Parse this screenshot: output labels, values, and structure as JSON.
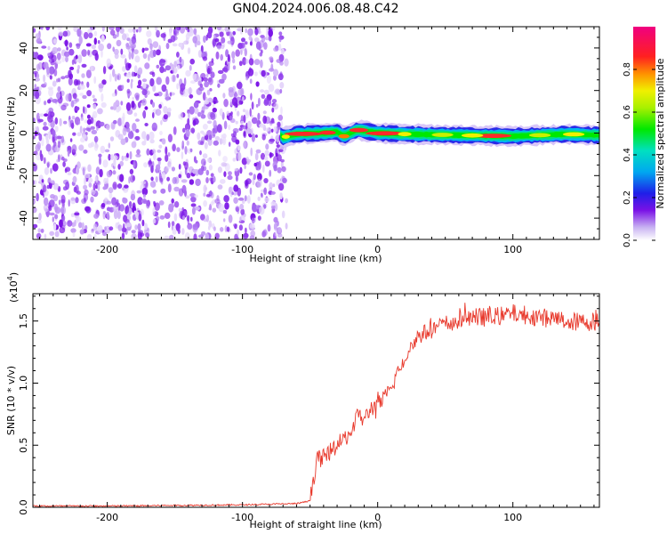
{
  "title": "GN04.2024.006.08.48.C42",
  "chart_data": [
    {
      "type": "heatmap",
      "xlabel": "Height of straight line (km)",
      "ylabel": "Frequency (Hz)",
      "xlim": [
        -255,
        164
      ],
      "ylim": [
        -50,
        50
      ],
      "x_ticks": [
        -200,
        -100,
        0,
        100
      ],
      "y_ticks": [
        -40,
        -20,
        0,
        20,
        40
      ],
      "colorbar": {
        "label": "Normalized spectral amplitude",
        "range": [
          0,
          1
        ],
        "ticks": [
          "0.0",
          "0.2",
          "0.4",
          "0.6",
          "0.8"
        ]
      },
      "regions": [
        {
          "name": "noise",
          "x_range": [
            -255,
            -70
          ],
          "f_range": [
            -50,
            50
          ],
          "amplitude": 0.1
        },
        {
          "name": "signal-band",
          "x_range": [
            -72,
            164
          ],
          "f_center": 0,
          "f_halfwidth": 3,
          "amplitude_range": [
            0.3,
            1.0
          ]
        }
      ],
      "signal_band_centers": [
        {
          "x": -70,
          "f": -2
        },
        {
          "x": -60,
          "f": -0.5
        },
        {
          "x": -40,
          "f": 0
        },
        {
          "x": -30,
          "f": 0.5
        },
        {
          "x": -25,
          "f": -1.5
        },
        {
          "x": -15,
          "f": 1.5
        },
        {
          "x": 0,
          "f": 0
        },
        {
          "x": 20,
          "f": -0.5
        },
        {
          "x": 60,
          "f": -1
        },
        {
          "x": 100,
          "f": -1.5
        },
        {
          "x": 140,
          "f": -0.5
        },
        {
          "x": 164,
          "f": -1
        }
      ]
    },
    {
      "type": "line",
      "xlabel": "Height of straight line (km)",
      "ylabel": "SNR (10 * v/v)",
      "y_multiplier": "(x10",
      "y_exponent": "4",
      "xlim": [
        -255,
        164
      ],
      "ylim": [
        0,
        1.72
      ],
      "x_ticks": [
        -200,
        -100,
        0,
        100
      ],
      "y_ticks": [
        "0.0",
        "0.5",
        "1.0",
        "1.5"
      ],
      "series": [
        {
          "color": "#e8392c",
          "x": [
            -255,
            -200,
            -150,
            -100,
            -60,
            -50,
            -48,
            -45,
            -40,
            -35,
            -30,
            -25,
            -20,
            -15,
            -10,
            -5,
            0,
            5,
            10,
            15,
            20,
            25,
            30,
            40,
            50,
            60,
            70,
            80,
            90,
            100,
            110,
            120,
            130,
            140,
            150,
            164
          ],
          "y": [
            0.01,
            0.01,
            0.015,
            0.02,
            0.03,
            0.05,
            0.2,
            0.38,
            0.4,
            0.45,
            0.5,
            0.55,
            0.6,
            0.75,
            0.7,
            0.8,
            0.82,
            0.88,
            0.95,
            1.1,
            1.2,
            1.3,
            1.38,
            1.43,
            1.48,
            1.5,
            1.53,
            1.53,
            1.54,
            1.56,
            1.55,
            1.53,
            1.52,
            1.5,
            1.49,
            1.5
          ],
          "noise_amplitude": 0.07
        }
      ]
    }
  ]
}
